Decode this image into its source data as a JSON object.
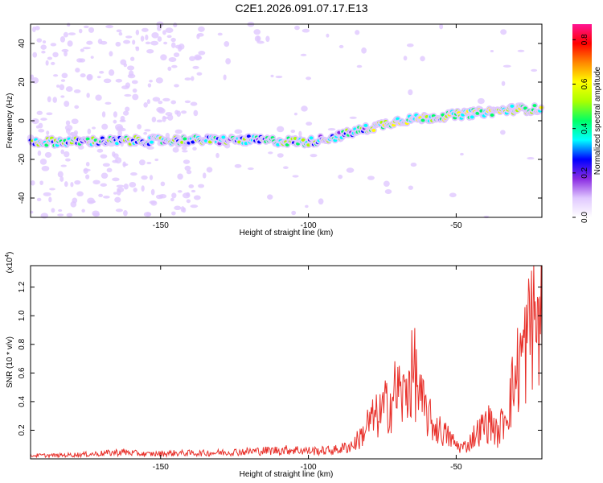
{
  "title": "C2E1.2026.091.07.17.E13",
  "colors": {
    "snr_line": "#e8302a",
    "spectrogram_low": "#cc99ff",
    "spectrogram_mid": "#5a00cc"
  },
  "chart_data": [
    {
      "type": "heatmap",
      "name": "spectrogram",
      "xlabel": "Height of straight line (km)",
      "ylabel": "Frequency (Hz)",
      "xlim": [
        -194,
        -21
      ],
      "ylim": [
        -50,
        50
      ],
      "xticks": [
        -150,
        -100,
        -50
      ],
      "yticks": [
        -40,
        -20,
        0,
        20,
        40
      ],
      "grid": false,
      "colorbar": {
        "label": "Normalized spectral amplitude",
        "range": [
          0,
          0.87
        ],
        "ticks": [
          "0.0",
          "0.2",
          "0.4",
          "0.6",
          "0.8"
        ],
        "colormap": [
          "#ffffff",
          "#e0c8ff",
          "#8a2be2",
          "#0000ff",
          "#00ffff",
          "#00ff66",
          "#aaff00",
          "#ffff00",
          "#ff8800",
          "#ff0000",
          "#ff1493"
        ]
      },
      "ridge": {
        "description_points_x": [
          -194,
          -140,
          -120,
          -100,
          -90,
          -70,
          -50,
          -30,
          -21
        ],
        "description_points_y": [
          -11,
          -10,
          -10,
          -11,
          -8,
          0,
          3,
          6,
          6
        ]
      }
    },
    {
      "type": "line",
      "name": "snr",
      "xlabel": "Height of straight line (km)",
      "ylabel": "SNR (10 * v/v)",
      "yscale_label": "(x10",
      "yscale_exp": "4",
      "yscale_suffix": ")",
      "xlim": [
        -194,
        -21
      ],
      "ylim": [
        0,
        1.35
      ],
      "xticks": [
        -150,
        -100,
        -50
      ],
      "yticks": [
        0.2,
        0.4,
        0.6,
        0.8,
        1.0,
        1.2
      ],
      "ytick_labels": [
        "0.2",
        "0.4",
        "0.6",
        "0.8",
        "1.0",
        "1.2"
      ],
      "grid": false,
      "series": [
        {
          "x": [
            -194,
            -185,
            -175,
            -168,
            -163,
            -155,
            -145,
            -135,
            -125,
            -115,
            -105,
            -100,
            -95,
            -90,
            -85,
            -82,
            -80,
            -78,
            -76,
            -74,
            -72,
            -70,
            -68,
            -66,
            -64,
            -62,
            -60,
            -58,
            -56,
            -54,
            -52,
            -50,
            -48,
            -46,
            -44,
            -42,
            -40,
            -38,
            -36,
            -34,
            -32,
            -30,
            -28,
            -26,
            -24,
            -22,
            -21
          ],
          "y": [
            0.03,
            0.03,
            0.04,
            0.05,
            0.06,
            0.04,
            0.05,
            0.05,
            0.06,
            0.07,
            0.08,
            0.07,
            0.07,
            0.08,
            0.12,
            0.2,
            0.3,
            0.35,
            0.38,
            0.45,
            0.5,
            0.62,
            0.52,
            0.68,
            0.76,
            0.5,
            0.4,
            0.3,
            0.26,
            0.22,
            0.18,
            0.12,
            0.1,
            0.12,
            0.2,
            0.25,
            0.3,
            0.32,
            0.2,
            0.35,
            0.5,
            0.7,
            0.9,
            1.0,
            1.34,
            1.1,
            1.2
          ]
        }
      ]
    }
  ],
  "labels": {
    "p1_ylabel": "Frequency (Hz)",
    "p1_xlabel": "Height of straight line (km)",
    "p2_ylabel": "SNR (10 * v/v)",
    "p2_xlabel": "Height of straight line (km)",
    "colorbar_label": "Normalized spectral amplitude"
  }
}
